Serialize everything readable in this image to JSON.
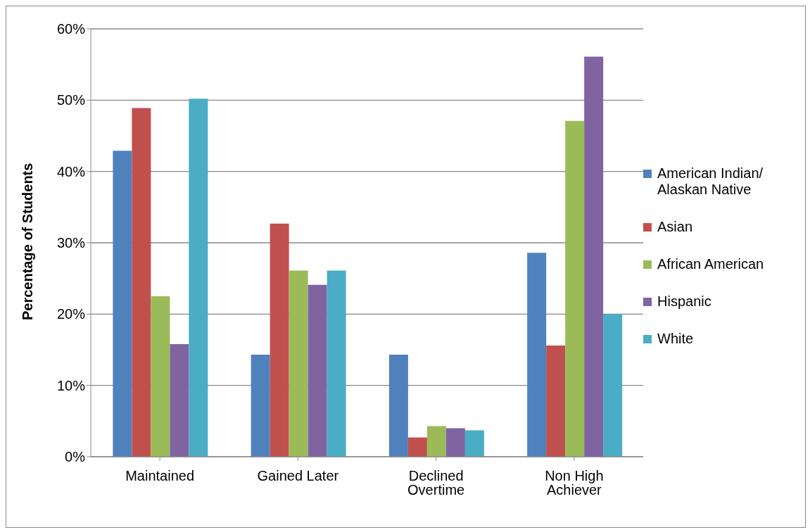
{
  "chart_data": {
    "type": "bar",
    "ylabel": "Percentage of Students",
    "categories": [
      "Maintained",
      "Gained Later",
      "Declined Overtime",
      "Non High Achiever"
    ],
    "series": [
      {
        "name": "American Indian/ Alaskan Native",
        "color": "#4f81bd",
        "values": [
          42.9,
          14.3,
          14.3,
          28.6
        ]
      },
      {
        "name": "Asian",
        "color": "#c0504d",
        "values": [
          48.9,
          32.7,
          2.7,
          15.6
        ]
      },
      {
        "name": "African American",
        "color": "#9bbb59",
        "values": [
          22.5,
          26.1,
          4.3,
          47.1
        ]
      },
      {
        "name": "Hispanic",
        "color": "#8064a2",
        "values": [
          15.8,
          24.1,
          4.0,
          56.1
        ]
      },
      {
        "name": "White",
        "color": "#4bacc6",
        "values": [
          50.2,
          26.1,
          3.7,
          20.0
        ]
      }
    ],
    "ylim": [
      0,
      60
    ],
    "yticks": [
      {
        "value": 0,
        "label": "0%"
      },
      {
        "value": 10,
        "label": "10%"
      },
      {
        "value": 20,
        "label": "20%"
      },
      {
        "value": 30,
        "label": "30%"
      },
      {
        "value": 40,
        "label": "40%"
      },
      {
        "value": 50,
        "label": "50%"
      },
      {
        "value": 60,
        "label": "60%"
      }
    ],
    "grid": "y",
    "legend": "right"
  }
}
